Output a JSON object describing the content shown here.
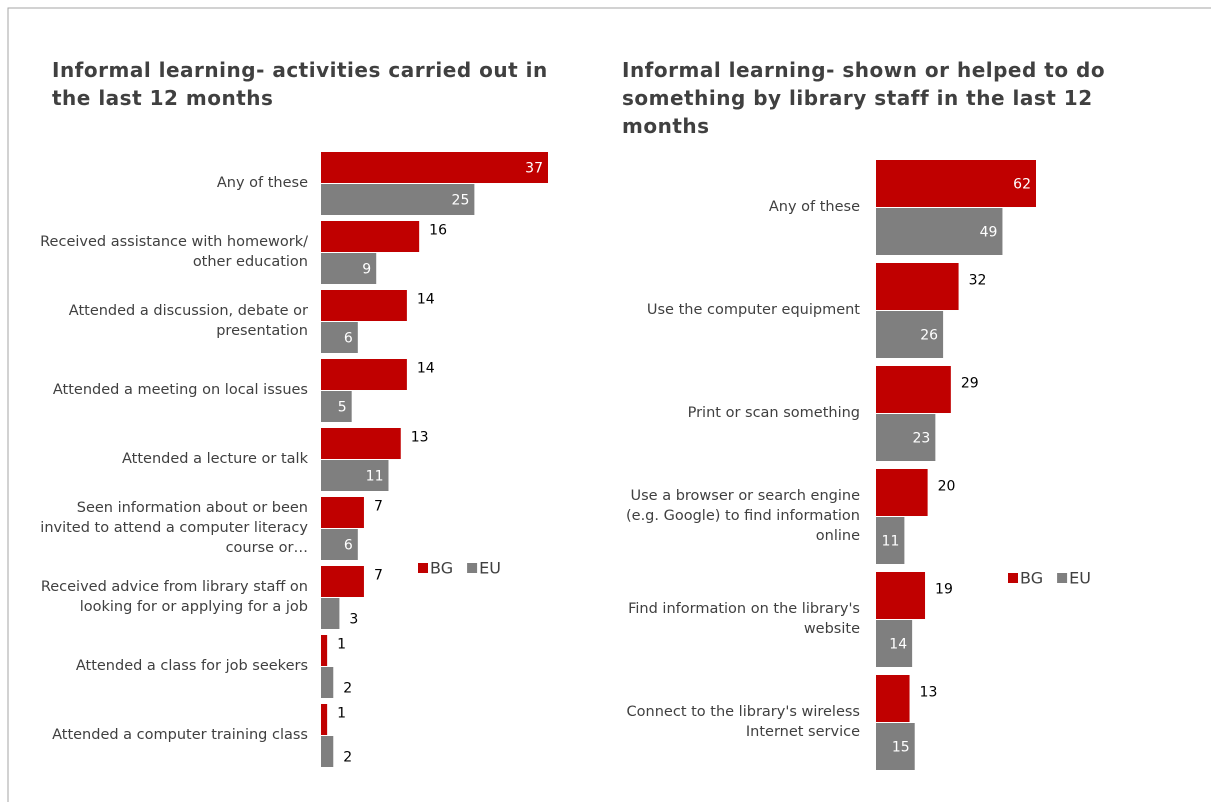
{
  "chart_data": [
    {
      "type": "bar",
      "orientation": "horizontal",
      "title": "Informal learning- activities carried out in the last 12 months",
      "categories": [
        "Any of these",
        "Received assistance with homework/ other education",
        "Attended a discussion, debate or presentation",
        "Attended a meeting on local issues",
        "Attended a lecture or talk",
        "Seen information about or been invited to attend a computer literacy course or…",
        "Received advice from library staff on looking for or applying for a job",
        "Attended a class for job seekers",
        "Attended a computer training class"
      ],
      "series": [
        {
          "name": "BG",
          "color": "#c00000",
          "values": [
            37,
            16,
            14,
            14,
            13,
            7,
            7,
            1,
            1
          ]
        },
        {
          "name": "EU",
          "color": "#7f7f7f",
          "values": [
            25,
            9,
            6,
            5,
            11,
            6,
            3,
            2,
            2
          ]
        }
      ],
      "legend": "right"
    },
    {
      "type": "bar",
      "orientation": "horizontal",
      "title": "Informal learning- shown or helped to do something by library staff in the last 12 months",
      "categories": [
        "Any of these",
        "Use the computer equipment",
        "Print or scan something",
        "Use a browser or search engine (e.g. Google) to find information online",
        "Find information on the library's website",
        "Connect to the library's wireless Internet service"
      ],
      "series": [
        {
          "name": "BG",
          "color": "#c00000",
          "values": [
            62,
            32,
            29,
            20,
            19,
            13
          ]
        },
        {
          "name": "EU",
          "color": "#7f7f7f",
          "values": [
            49,
            26,
            23,
            11,
            14,
            15
          ]
        }
      ],
      "legend": "right"
    }
  ]
}
